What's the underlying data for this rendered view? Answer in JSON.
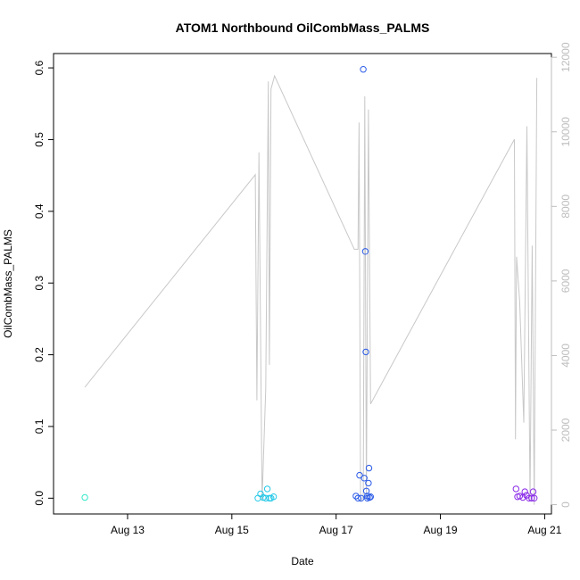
{
  "chart_data": {
    "type": "scatter",
    "title": "ATOM1 Northbound OilCombMass_PALMS",
    "xlabel": "Date",
    "ylabel": "OilCombMass_PALMS",
    "x_tick_labels": [
      "Aug 13",
      "Aug 15",
      "Aug 17",
      "Aug 19",
      "Aug 21"
    ],
    "x_tick_values": [
      13,
      15,
      17,
      19,
      21
    ],
    "xlim": [
      11.58,
      21.13
    ],
    "y_tick_labels": [
      "0.0",
      "0.1",
      "0.2",
      "0.3",
      "0.4",
      "0.5",
      "0.6"
    ],
    "y_tick_values": [
      0,
      0.1,
      0.2,
      0.3,
      0.4,
      0.5,
      0.6
    ],
    "ylim": [
      -0.022,
      0.62
    ],
    "y2_tick_labels": [
      "0",
      "2000",
      "4000",
      "6000",
      "8000",
      "10000",
      "12000"
    ],
    "y2_tick_values": [
      0,
      2000,
      4000,
      6000,
      8000,
      10000,
      12000
    ],
    "y2lim": [
      -250,
      12100
    ],
    "grid": false,
    "colors": {
      "altitude_line": "#c8c8c8",
      "right_axis": "#bdbdbd",
      "points": [
        "#33e8c8",
        "#22c8e8",
        "#2a5ae8",
        "#8a2ae8"
      ]
    },
    "series": [
      {
        "color": "#33e8c8",
        "points": [
          [
            12.18,
            0.001
          ]
        ]
      },
      {
        "color": "#22c8e8",
        "points": [
          [
            15.5,
            0.0
          ],
          [
            15.55,
            0.006
          ],
          [
            15.6,
            0.001
          ],
          [
            15.65,
            0.0
          ],
          [
            15.68,
            0.013
          ],
          [
            15.72,
            0.0
          ],
          [
            15.75,
            0.0
          ],
          [
            15.8,
            0.002
          ]
        ]
      },
      {
        "color": "#2a5ae8",
        "points": [
          [
            17.38,
            0.003
          ],
          [
            17.42,
            0.0
          ],
          [
            17.45,
            0.032
          ],
          [
            17.48,
            0.0
          ],
          [
            17.52,
            0.598
          ],
          [
            17.54,
            0.028
          ],
          [
            17.56,
            0.344
          ],
          [
            17.57,
            0.204
          ],
          [
            17.58,
            0.01
          ],
          [
            17.6,
            0.003
          ],
          [
            17.62,
            0.021
          ],
          [
            17.63,
            0.042
          ],
          [
            17.6,
            0.0
          ],
          [
            17.64,
            0.001
          ],
          [
            17.66,
            0.002
          ]
        ]
      },
      {
        "color": "#8a2ae8",
        "points": [
          [
            20.45,
            0.013
          ],
          [
            20.48,
            0.002
          ],
          [
            20.52,
            0.003
          ],
          [
            20.58,
            0.001
          ],
          [
            20.62,
            0.009
          ],
          [
            20.65,
            0.004
          ],
          [
            20.7,
            0.0
          ],
          [
            20.75,
            0.0
          ],
          [
            20.78,
            0.009
          ],
          [
            20.8,
            0.0
          ]
        ]
      }
    ],
    "altitude_line": [
      [
        12.18,
        3150
      ],
      [
        15.45,
        8850
      ],
      [
        15.48,
        2800
      ],
      [
        15.52,
        9450
      ],
      [
        15.58,
        100
      ],
      [
        15.65,
        3100
      ],
      [
        15.7,
        11350
      ],
      [
        15.72,
        3750
      ],
      [
        15.75,
        11150
      ],
      [
        15.82,
        11500
      ],
      [
        17.35,
        6850
      ],
      [
        17.42,
        6850
      ],
      [
        17.44,
        10250
      ],
      [
        17.47,
        100
      ],
      [
        17.52,
        200
      ],
      [
        17.55,
        10950
      ],
      [
        17.58,
        150
      ],
      [
        17.62,
        10600
      ],
      [
        17.66,
        2700
      ],
      [
        20.42,
        9800
      ],
      [
        20.44,
        1750
      ],
      [
        20.46,
        6650
      ],
      [
        20.52,
        5450
      ],
      [
        20.6,
        2200
      ],
      [
        20.66,
        10150
      ],
      [
        20.72,
        100
      ],
      [
        20.76,
        6950
      ],
      [
        20.8,
        0
      ],
      [
        20.85,
        11450
      ]
    ]
  }
}
